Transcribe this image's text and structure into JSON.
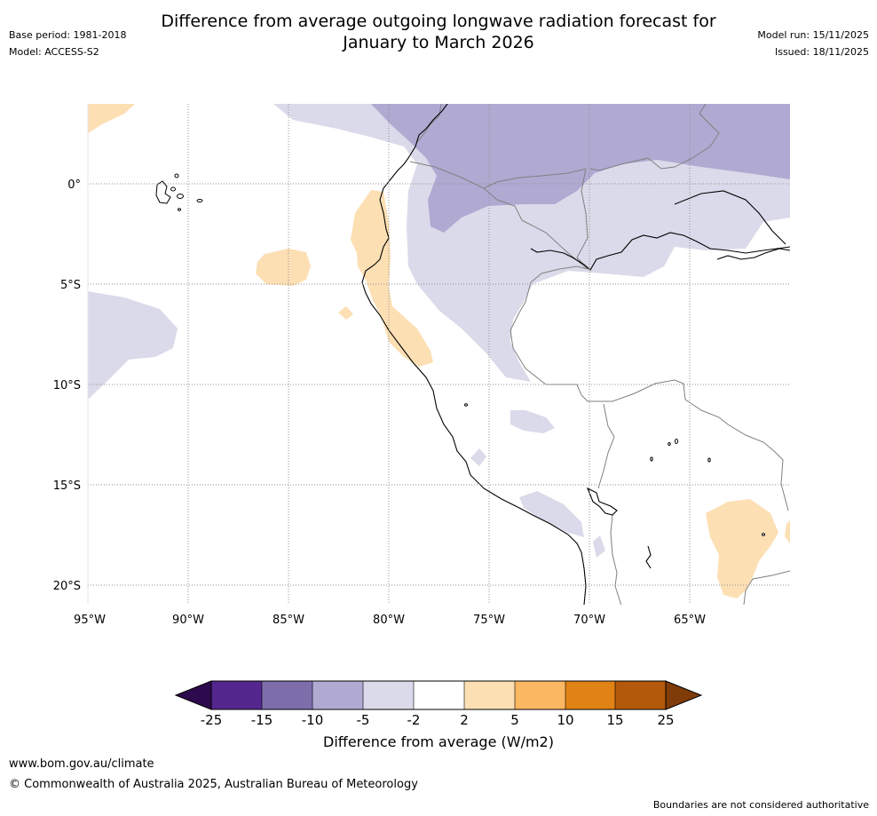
{
  "header": {
    "title_line1": "Difference from average outgoing longwave radiation forecast for",
    "title_line2": "January to March 2026",
    "base_period": "Base period: 1981-2018",
    "model": "Model: ACCESS-S2",
    "model_run": "Model run: 15/11/2025",
    "issued": "Issued: 18/11/2025"
  },
  "map": {
    "lon_labels": [
      "95°W",
      "90°W",
      "85°W",
      "80°W",
      "75°W",
      "70°W",
      "65°W"
    ],
    "lat_labels": [
      "0°",
      "5°S",
      "10°S",
      "15°S",
      "20°S"
    ]
  },
  "colorbar": {
    "tick_labels": [
      "-25",
      "-15",
      "-10",
      "-5",
      "-2",
      "2",
      "5",
      "10",
      "15",
      "25"
    ],
    "colors": [
      "#2d0a4e",
      "#54278f",
      "#7d6eab",
      "#b0a9d2",
      "#dadaea",
      "#ffffff",
      "#fddfb4",
      "#fbb862",
      "#e08214",
      "#b3590b",
      "#7f3b08"
    ],
    "label": "Difference from average (W/m2)"
  },
  "footer": {
    "website": "www.bom.gov.au/climate",
    "copyright": "© Commonwealth of Australia 2025, Australian Bureau of Meteorology",
    "disclaimer": "Boundaries are not considered authoritative"
  }
}
